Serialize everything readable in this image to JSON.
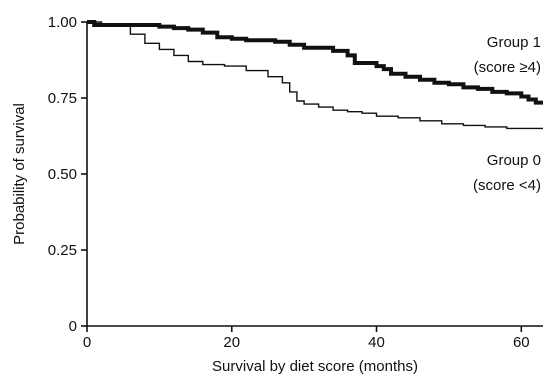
{
  "chart_data": {
    "type": "line",
    "title": "",
    "xlabel": "Survival by diet score (months)",
    "ylabel": "Probability of survival",
    "xlim": [
      0,
      63
    ],
    "ylim": [
      0,
      1.0
    ],
    "x_ticks": [
      0,
      20,
      40,
      60
    ],
    "y_ticks": [
      0,
      0.25,
      0.5,
      0.75,
      1.0
    ],
    "x_tick_labels": [
      "0",
      "20",
      "40",
      "60"
    ],
    "y_tick_labels": [
      "0",
      "0.25",
      "0.50",
      "0.75",
      "1.00"
    ],
    "grid": false,
    "step": true,
    "series": [
      {
        "name": "Group 1 (score ≥4)",
        "label_lines": [
          "Group 1",
          "(score ≥4)"
        ],
        "style": "thick",
        "x": [
          0,
          1,
          5,
          10,
          12,
          14,
          16,
          18,
          20,
          22,
          26,
          28,
          30,
          34,
          36,
          37,
          40,
          41,
          42,
          44,
          46,
          48,
          50,
          52,
          54,
          56,
          58,
          60,
          61,
          62,
          63
        ],
        "y": [
          1.0,
          0.99,
          0.99,
          0.985,
          0.98,
          0.975,
          0.965,
          0.95,
          0.945,
          0.94,
          0.935,
          0.925,
          0.915,
          0.905,
          0.89,
          0.865,
          0.855,
          0.845,
          0.83,
          0.82,
          0.81,
          0.8,
          0.795,
          0.785,
          0.78,
          0.77,
          0.765,
          0.755,
          0.745,
          0.735,
          0.735
        ]
      },
      {
        "name": "Group 0 (score <4)",
        "label_lines": [
          "Group 0",
          "(score <4)"
        ],
        "style": "thin",
        "x": [
          0,
          2,
          6,
          8,
          10,
          12,
          14,
          16,
          19,
          22,
          25,
          27,
          28,
          29,
          30,
          32,
          34,
          36,
          38,
          40,
          43,
          46,
          49,
          52,
          55,
          58,
          63
        ],
        "y": [
          1.0,
          0.99,
          0.96,
          0.93,
          0.91,
          0.89,
          0.87,
          0.86,
          0.855,
          0.84,
          0.82,
          0.8,
          0.77,
          0.74,
          0.73,
          0.72,
          0.71,
          0.705,
          0.7,
          0.69,
          0.685,
          0.675,
          0.665,
          0.66,
          0.655,
          0.65,
          0.65
        ]
      }
    ],
    "colors": {
      "axis": "#111111",
      "line": "#111111",
      "background": "#ffffff"
    }
  }
}
